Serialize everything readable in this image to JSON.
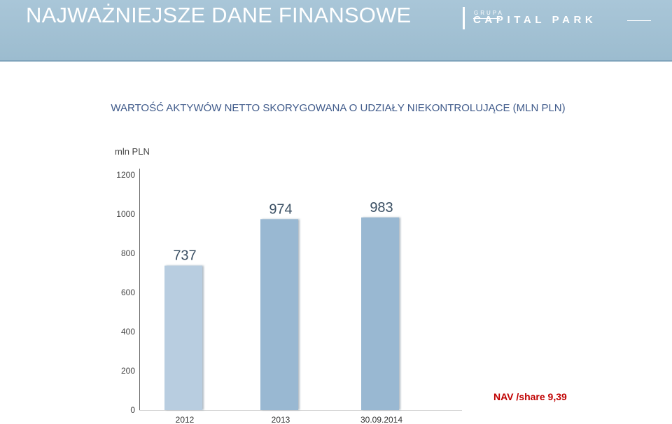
{
  "header": {
    "title": "NAJWAŻNIEJSZE DANE FINANSOWE",
    "logo_grupa": "GRUPA",
    "logo_name": "CAPITAL PARK"
  },
  "colors": {
    "header_bg": "#a9c6d8",
    "bar_light": "#b8cde0",
    "bar_mid": "#99b8d2",
    "note_red": "#c00000"
  },
  "nav_note": "NAV /share 9,39",
  "chart_data": {
    "type": "bar",
    "title": "WARTOŚĆ AKTYWÓW NETTO SKORYGOWANA O UDZIAŁY NIEKONTROLUJĄCE (MLN PLN)",
    "ylabel": "mln PLN",
    "xlabel": "",
    "categories": [
      "2012",
      "2013",
      "30.09.2014"
    ],
    "values": [
      737,
      974,
      983
    ],
    "data_labels": [
      "737",
      "974",
      "983"
    ],
    "ylim": [
      0,
      1200
    ],
    "yticks": [
      0,
      200,
      400,
      600,
      800,
      1000,
      1200
    ],
    "grid": false,
    "legend": "none"
  }
}
